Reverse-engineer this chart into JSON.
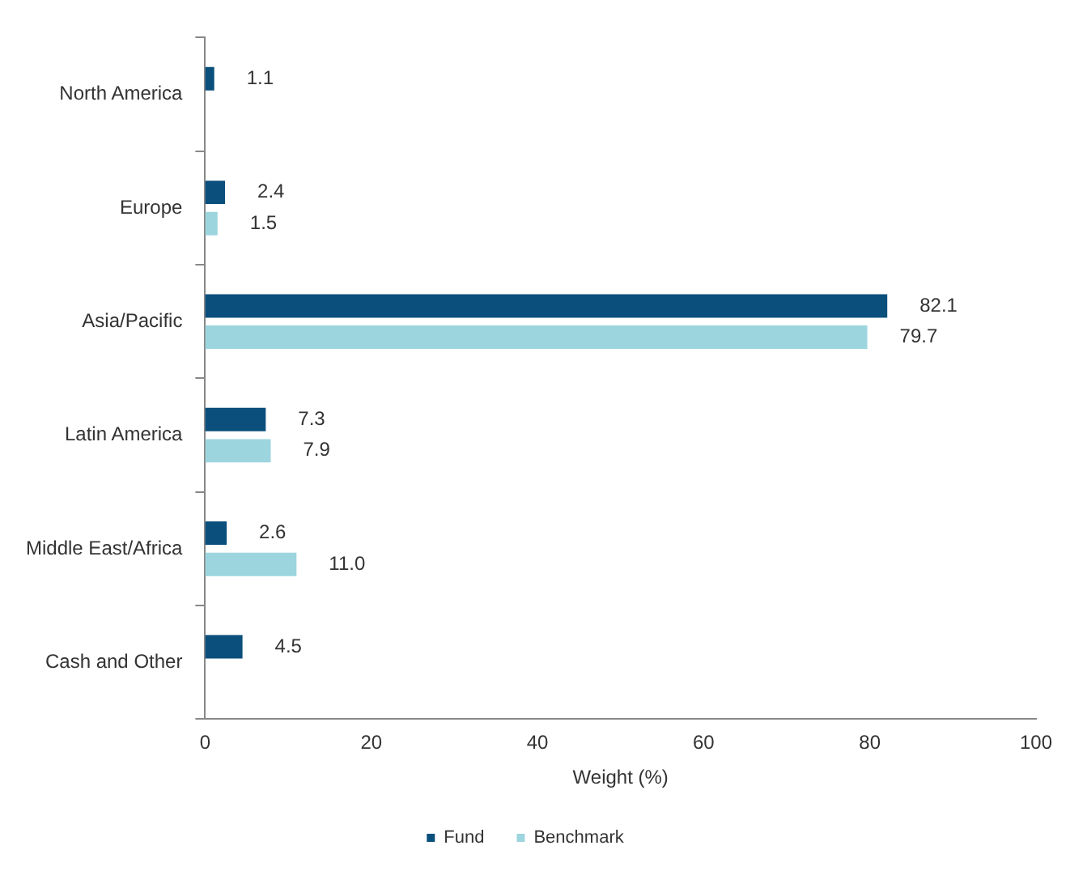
{
  "chart_data": {
    "type": "bar",
    "orientation": "horizontal",
    "xlabel": "Weight (%)",
    "categories": [
      "North America",
      "Europe",
      "Asia/Pacific",
      "Latin America",
      "Middle East/Africa",
      "Cash and Other"
    ],
    "series": [
      {
        "name": "Fund",
        "color": "#0b4f7c",
        "values": [
          1.1,
          2.4,
          82.1,
          7.3,
          2.6,
          4.5
        ],
        "value_labels": [
          "1.1",
          "2.4",
          "82.1",
          "7.3",
          "2.6",
          "4.5"
        ]
      },
      {
        "name": "Benchmark",
        "color": "#9dd5df",
        "values": [
          null,
          1.5,
          79.7,
          7.9,
          11.0,
          null
        ],
        "value_labels": [
          null,
          "1.5",
          "79.7",
          "7.9",
          "11.0",
          null
        ]
      }
    ],
    "xlim": [
      0,
      100
    ],
    "xticks": [
      0,
      20,
      40,
      60,
      80,
      100
    ],
    "legend": "bottom"
  }
}
